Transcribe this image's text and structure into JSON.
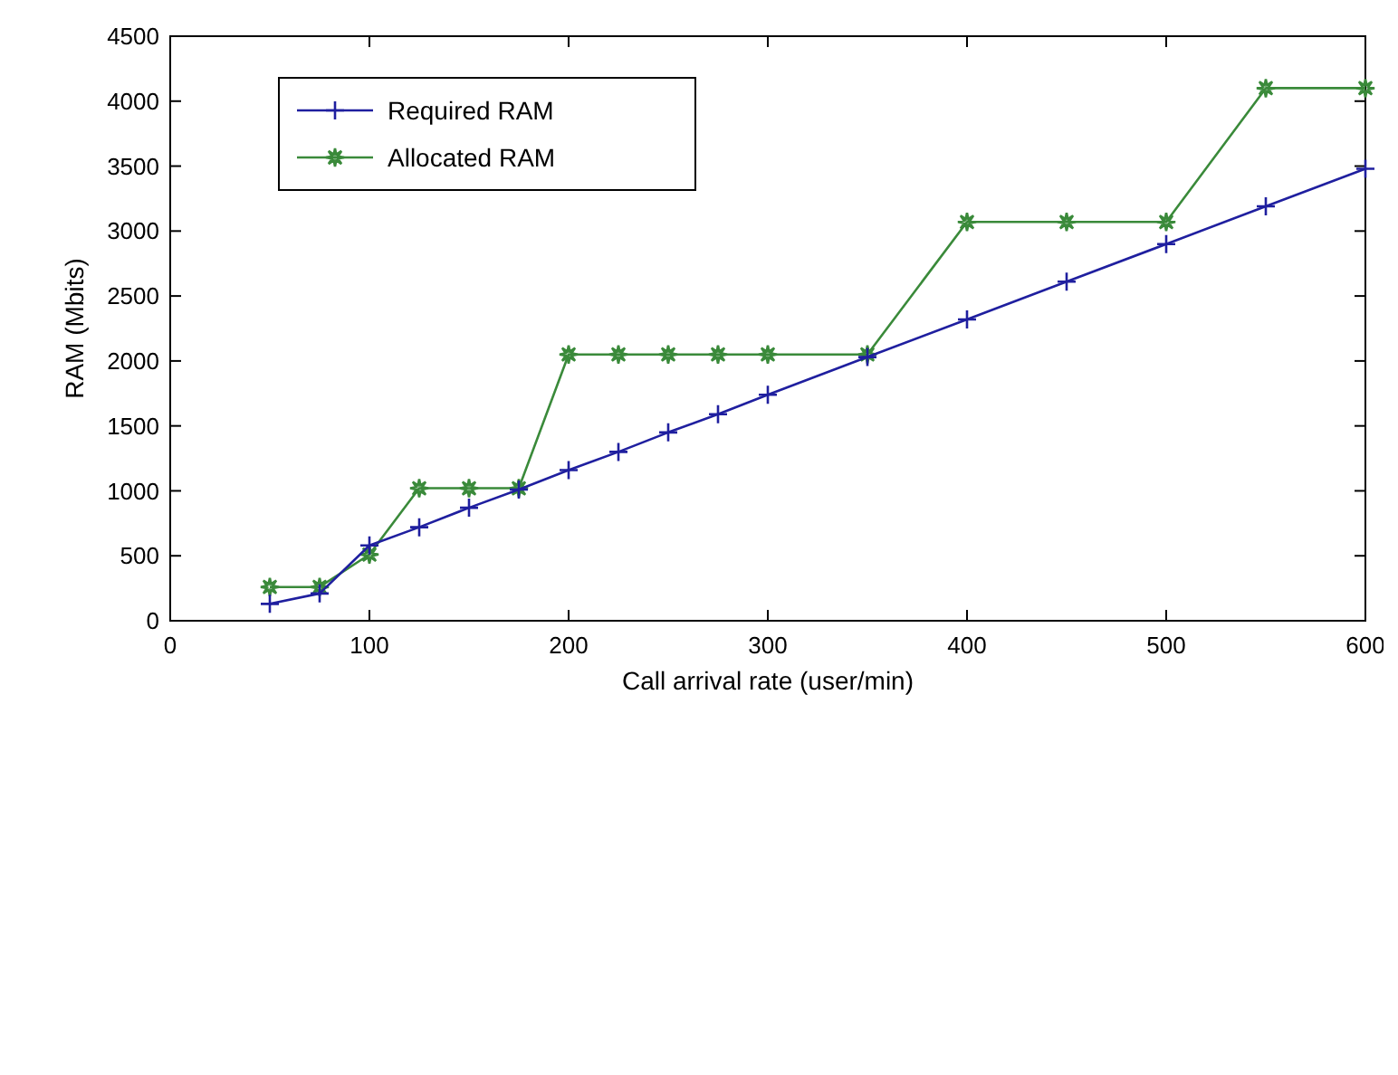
{
  "chart_data": {
    "type": "line",
    "xlabel": "Call arrival rate (user/min)",
    "ylabel": "RAM (Mbits)",
    "x": [
      50,
      75,
      100,
      125,
      150,
      175,
      200,
      225,
      250,
      275,
      300,
      350,
      400,
      450,
      500,
      550,
      600
    ],
    "series": [
      {
        "name": "Required RAM",
        "color": "#1f1f9f",
        "marker": "cross",
        "values": [
          130,
          210,
          580,
          720,
          870,
          1010,
          1160,
          1300,
          1450,
          1590,
          1740,
          2030,
          2320,
          2610,
          2900,
          3190,
          3480
        ]
      },
      {
        "name": "Allocated RAM",
        "color": "#3a8a3a",
        "marker": "star",
        "values": [
          260,
          260,
          510,
          1020,
          1020,
          1020,
          2050,
          2050,
          2050,
          2050,
          2050,
          2050,
          3070,
          3070,
          3070,
          4100,
          4100
        ]
      }
    ],
    "xlim": [
      0,
      600
    ],
    "xticks": [
      0,
      100,
      200,
      300,
      400,
      500,
      600
    ],
    "ylim": [
      0,
      4500
    ],
    "yticks": [
      0,
      500,
      1000,
      1500,
      2000,
      2500,
      3000,
      3500,
      4000,
      4500
    ],
    "grid": false,
    "legend": "top left",
    "line_style": "solid"
  }
}
